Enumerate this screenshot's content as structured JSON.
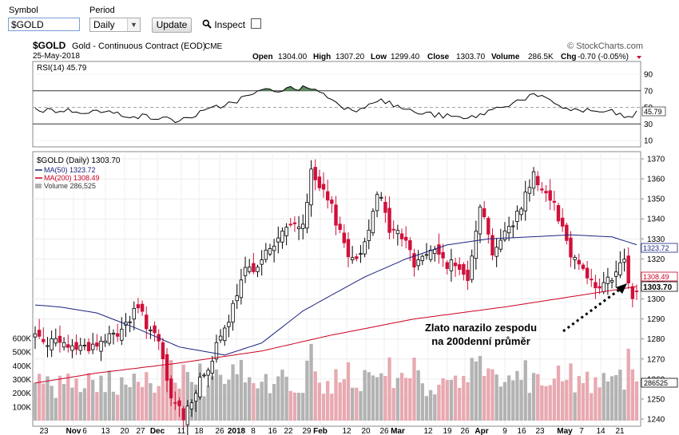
{
  "toolbar": {
    "symbol_label": "Symbol",
    "symbol_value": "$GOLD",
    "period_label": "Period",
    "period_value": "Daily",
    "update_label": "Update",
    "inspect_label": "Inspect"
  },
  "header": {
    "title_symbol": "$GOLD",
    "title_name": "Gold - Continuous Contract (EOD)",
    "exchange": "CME",
    "brand": "© StockCharts.com",
    "date": "25-May-2018",
    "open_label": "Open",
    "open": "1304.00",
    "high_label": "High",
    "high": "1307.20",
    "low_label": "Low",
    "low": "1299.40",
    "close_label": "Close",
    "close": "1303.70",
    "volume_label": "Volume",
    "volume": "286.5K",
    "chg_label": "Chg",
    "chg": "-0.70 (-0.05%)"
  },
  "rsi_panel": {
    "legend": "RSI(14) 45.79",
    "current_value": "45.79",
    "ticks": [
      "90",
      "70",
      "50",
      "30",
      "10"
    ],
    "overbought": 70,
    "oversold": 30
  },
  "price_panel": {
    "legend_main": "$GOLD (Daily) 1303.70",
    "legend_ma50": "MA(50) 1323.72",
    "legend_ma200": "MA(200) 1308.49",
    "legend_volume": "Volume 286,525",
    "tag_ma50": "1323.72",
    "tag_ma200": "1308.49",
    "tag_close": "1303.70",
    "tag_volume": "286525",
    "price_ticks": [
      "1370",
      "1360",
      "1350",
      "1340",
      "1330",
      "1320",
      "1310",
      "1300",
      "1290",
      "1280",
      "1270",
      "1260",
      "1250",
      "1240"
    ],
    "volume_ticks": [
      "600K",
      "500K",
      "400K",
      "300K",
      "200K",
      "100K"
    ],
    "x_ticks": [
      "23",
      "Nov",
      "6",
      "13",
      "20",
      "27",
      "Dec",
      "11",
      "18",
      "26",
      "2018",
      "8",
      "16",
      "22",
      "29",
      "Feb",
      "12",
      "20",
      "26",
      "Mar",
      "12",
      "19",
      "26",
      "Apr",
      "9",
      "16",
      "23",
      "May",
      "7",
      "14",
      "21"
    ]
  },
  "annotation": {
    "line1": "Zlato narazilo zespodu",
    "line2": "na 200denní průměr"
  },
  "colors": {
    "up": "#000000",
    "down": "#d0103a",
    "ma50": "#1a237e",
    "ma200": "#cc0022",
    "vol_up": "#b3b3b3",
    "vol_down": "#e8a9b1",
    "rsi_fill": "#5e8f61"
  },
  "chart_data": {
    "type": "candlestick",
    "title": "$GOLD Gold - Continuous Contract (EOD)",
    "date_range": [
      "2017-10-23",
      "2018-05-25"
    ],
    "last_bar": {
      "date": "2018-05-25",
      "open": 1304.0,
      "high": 1307.2,
      "low": 1299.4,
      "close": 1303.7,
      "volume": 286525
    },
    "y_range": [
      1237,
      1373
    ],
    "close_path": [
      {
        "x": "Oct 23",
        "y": 1282
      },
      {
        "x": "Nov 1",
        "y": 1277
      },
      {
        "x": "Nov 6",
        "y": 1276
      },
      {
        "x": "Nov 13",
        "y": 1277
      },
      {
        "x": "Nov 20",
        "y": 1283
      },
      {
        "x": "Nov 27",
        "y": 1295
      },
      {
        "x": "Dec 4",
        "y": 1277
      },
      {
        "x": "Dec 8",
        "y": 1250
      },
      {
        "x": "Dec 12",
        "y": 1242
      },
      {
        "x": "Dec 18",
        "y": 1258
      },
      {
        "x": "Dec 26",
        "y": 1284
      },
      {
        "x": "Jan 2",
        "y": 1313
      },
      {
        "x": "Jan 8",
        "y": 1320
      },
      {
        "x": "Jan 16",
        "y": 1335
      },
      {
        "x": "Jan 22",
        "y": 1338
      },
      {
        "x": "Jan 25",
        "y": 1362
      },
      {
        "x": "Feb 1",
        "y": 1345
      },
      {
        "x": "Feb 8",
        "y": 1318
      },
      {
        "x": "Feb 12",
        "y": 1328
      },
      {
        "x": "Feb 16",
        "y": 1355
      },
      {
        "x": "Feb 20",
        "y": 1335
      },
      {
        "x": "Feb 26",
        "y": 1330
      },
      {
        "x": "Mar 1",
        "y": 1317
      },
      {
        "x": "Mar 6",
        "y": 1325
      },
      {
        "x": "Mar 12",
        "y": 1318
      },
      {
        "x": "Mar 19",
        "y": 1312
      },
      {
        "x": "Mar 23",
        "y": 1348
      },
      {
        "x": "Mar 28",
        "y": 1324
      },
      {
        "x": "Apr 3",
        "y": 1338
      },
      {
        "x": "Apr 11",
        "y": 1362
      },
      {
        "x": "Apr 17",
        "y": 1348
      },
      {
        "x": "Apr 23",
        "y": 1323
      },
      {
        "x": "Apr 27",
        "y": 1316
      },
      {
        "x": "May 1",
        "y": 1305
      },
      {
        "x": "May 7",
        "y": 1310
      },
      {
        "x": "May 11",
        "y": 1318
      },
      {
        "x": "May 15",
        "y": 1290
      },
      {
        "x": "May 18",
        "y": 1291
      },
      {
        "x": "May 21",
        "y": 1291
      },
      {
        "x": "May 25",
        "y": 1304
      }
    ],
    "ma50": [
      {
        "x": "Oct 23",
        "y": 1297
      },
      {
        "x": "Nov 1",
        "y": 1296
      },
      {
        "x": "Nov 13",
        "y": 1293
      },
      {
        "x": "Nov 27",
        "y": 1285
      },
      {
        "x": "Dec 11",
        "y": 1276
      },
      {
        "x": "Dec 26",
        "y": 1272
      },
      {
        "x": "Jan 8",
        "y": 1278
      },
      {
        "x": "Jan 22",
        "y": 1294
      },
      {
        "x": "Feb 1",
        "y": 1302
      },
      {
        "x": "Feb 12",
        "y": 1311
      },
      {
        "x": "Feb 26",
        "y": 1320
      },
      {
        "x": "Mar 12",
        "y": 1327
      },
      {
        "x": "Mar 26",
        "y": 1330
      },
      {
        "x": "Apr 9",
        "y": 1331
      },
      {
        "x": "Apr 23",
        "y": 1332
      },
      {
        "x": "May 7",
        "y": 1331
      },
      {
        "x": "May 21",
        "y": 1324.5
      },
      {
        "x": "May 25",
        "y": 1323.72
      }
    ],
    "ma200": [
      {
        "x": "Oct 23",
        "y": 1258
      },
      {
        "x": "Nov 13",
        "y": 1263
      },
      {
        "x": "Dec 11",
        "y": 1268
      },
      {
        "x": "Jan 8",
        "y": 1274
      },
      {
        "x": "Feb 1",
        "y": 1282
      },
      {
        "x": "Mar 1",
        "y": 1290
      },
      {
        "x": "Apr 1",
        "y": 1296
      },
      {
        "x": "May 1",
        "y": 1303
      },
      {
        "x": "May 25",
        "y": 1308.49
      }
    ],
    "rsi": [
      {
        "x": "Oct 23",
        "y": 47
      },
      {
        "x": "Nov 13",
        "y": 45
      },
      {
        "x": "Dec 11",
        "y": 34
      },
      {
        "x": "Jan 2",
        "y": 62
      },
      {
        "x": "Jan 8",
        "y": 70
      },
      {
        "x": "Jan 16",
        "y": 72
      },
      {
        "x": "Jan 25",
        "y": 74
      },
      {
        "x": "Feb 1",
        "y": 60
      },
      {
        "x": "Feb 8",
        "y": 45
      },
      {
        "x": "Feb 16",
        "y": 60
      },
      {
        "x": "Mar 1",
        "y": 44
      },
      {
        "x": "Mar 19",
        "y": 36
      },
      {
        "x": "Apr 11",
        "y": 65
      },
      {
        "x": "Apr 23",
        "y": 47
      },
      {
        "x": "May 7",
        "y": 44
      },
      {
        "x": "May 15",
        "y": 35
      },
      {
        "x": "May 25",
        "y": 45.79
      }
    ],
    "volume_range_k": [
      0,
      600
    ],
    "annotation": "Zlato narazilo zespodu na 200denní průměr"
  }
}
